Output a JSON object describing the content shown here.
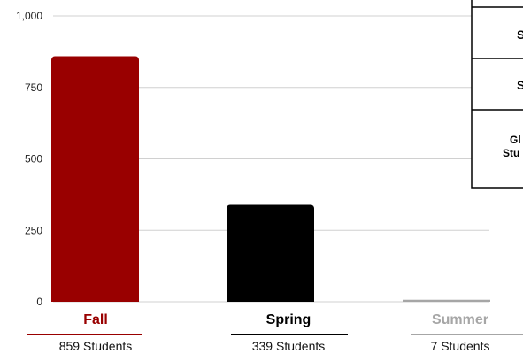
{
  "chart_data": {
    "type": "bar",
    "categories": [
      "Fall",
      "Spring",
      "Summer"
    ],
    "values": [
      859,
      339,
      7
    ],
    "counts": [
      "859 Students",
      "339 Students",
      "7 Students"
    ],
    "ylim": [
      0,
      1000
    ],
    "yticks": [
      0,
      250,
      500,
      750,
      1000
    ],
    "ytick_labels": [
      "0",
      "250",
      "500",
      "750",
      "1,000"
    ],
    "grid": true,
    "colors": [
      "#990000",
      "#000000",
      "#a6a6a6"
    ]
  },
  "side_table": {
    "rows": [
      "S",
      "S",
      "Gl",
      "Stu"
    ]
  }
}
